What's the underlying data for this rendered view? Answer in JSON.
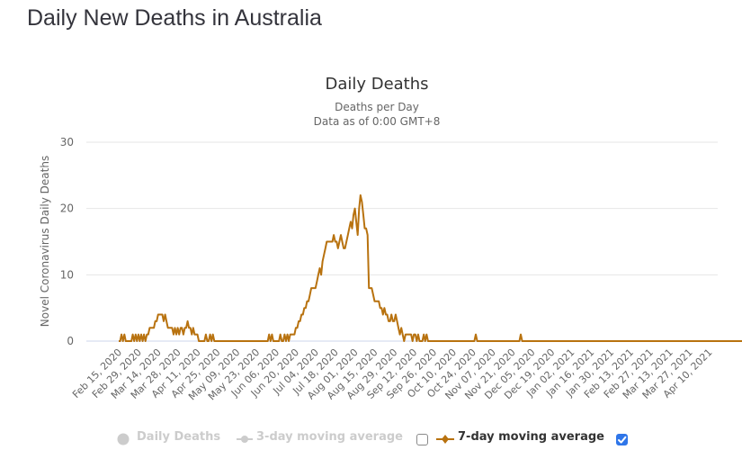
{
  "page": {
    "title": "Daily New Deaths in Australia"
  },
  "colors": {
    "series": "#b8720f",
    "grid": "#e6e6e6",
    "axis": "#ccd6eb",
    "legend_dim": "#cccccc",
    "checkbox": "#2f76e9"
  },
  "legend": {
    "items": [
      {
        "label": "Daily Deaths",
        "visible": false,
        "icon": "circle-marker-icon"
      },
      {
        "label": "3-day moving average",
        "visible": false,
        "icon": "line-dot-marker-icon"
      },
      {
        "label": "7-day moving average",
        "visible": true,
        "icon": "line-diamond-marker-icon"
      }
    ],
    "checkbox_3day": false,
    "checkbox_7day": true
  },
  "chart_data": {
    "type": "line",
    "title": "Daily Deaths",
    "subtitle_line1": "Deaths per Day",
    "subtitle_line2": "Data as of 0:00 GMT+8",
    "ylabel": "Novel Coronavirus Daily Deaths",
    "xlabel": "",
    "ylim": [
      0,
      30
    ],
    "yticks": [
      "0",
      "10",
      "20",
      "30"
    ],
    "grid": true,
    "legend_position": "bottom",
    "x_start": "Feb 15, 2020",
    "x_step_days": 1,
    "xtick_every_days": 14,
    "xticks": [
      "Feb 15, 2020",
      "Feb 29, 2020",
      "Mar 14, 2020",
      "Mar 28, 2020",
      "Apr 11, 2020",
      "Apr 25, 2020",
      "May 09, 2020",
      "May 23, 2020",
      "Jun 06, 2020",
      "Jun 20, 2020",
      "Jul 04, 2020",
      "Jul 18, 2020",
      "Aug 01, 2020",
      "Aug 15, 2020",
      "Aug 29, 2020",
      "Sep 12, 2020",
      "Sep 26, 2020",
      "Oct 10, 2020",
      "Oct 24, 2020",
      "Nov 07, 2020",
      "Nov 21, 2020",
      "Dec 05, 2020",
      "Dec 19, 2020",
      "Jan 02, 2021",
      "Jan 16, 2021",
      "Jan 30, 2021",
      "Feb 13, 2021",
      "Feb 27, 2021",
      "Mar 13, 2021",
      "Mar 27, 2021",
      "Apr 10, 2021"
    ],
    "series": [
      {
        "name": "7-day moving average",
        "values": [
          0,
          0,
          1,
          0,
          1,
          0,
          0,
          0,
          0,
          0,
          1,
          0,
          1,
          0,
          1,
          0,
          1,
          0,
          1,
          0,
          1,
          1,
          2,
          2,
          2,
          2,
          3,
          3,
          4,
          4,
          4,
          4,
          3,
          4,
          3,
          2,
          2,
          2,
          2,
          1,
          2,
          1,
          2,
          1,
          2,
          2,
          1,
          2,
          2,
          3,
          2,
          2,
          1,
          2,
          1,
          1,
          1,
          0,
          0,
          0,
          0,
          0,
          1,
          0,
          0,
          1,
          0,
          1,
          0,
          0,
          0,
          0,
          0,
          0,
          0,
          0,
          0,
          0,
          0,
          0,
          0,
          0,
          0,
          0,
          0,
          0,
          0,
          0,
          0,
          0,
          0,
          0,
          0,
          0,
          0,
          0,
          0,
          0,
          0,
          0,
          0,
          0,
          0,
          0,
          0,
          0,
          0,
          1,
          0,
          1,
          0,
          0,
          0,
          0,
          0,
          1,
          0,
          0,
          1,
          0,
          1,
          0,
          1,
          1,
          1,
          1,
          2,
          2,
          3,
          3,
          4,
          4,
          5,
          5,
          6,
          6,
          7,
          8,
          8,
          8,
          8,
          9,
          10,
          11,
          10,
          12,
          13,
          14,
          15,
          15,
          15,
          15,
          15,
          16,
          15,
          15,
          14,
          15,
          16,
          15,
          14,
          14,
          15,
          16,
          17,
          18,
          17,
          19,
          20,
          18,
          16,
          20,
          22,
          21,
          19,
          17,
          17,
          16,
          8,
          8,
          8,
          7,
          6,
          6,
          6,
          6,
          5,
          5,
          4,
          5,
          4,
          4,
          3,
          3,
          4,
          3,
          3,
          4,
          3,
          2,
          1,
          2,
          1,
          0,
          1,
          1,
          1,
          1,
          1,
          0,
          1,
          1,
          0,
          1,
          0,
          0,
          0,
          1,
          0,
          1,
          0,
          0,
          0,
          0,
          0,
          0,
          0,
          0,
          0,
          0,
          0,
          0,
          0,
          0,
          0,
          0,
          0,
          0,
          0,
          0,
          0,
          0,
          0,
          0,
          0,
          0,
          0,
          0,
          0,
          0,
          0,
          0,
          0,
          0,
          1,
          0,
          0,
          0,
          0,
          0,
          0,
          0,
          0,
          0,
          0,
          0,
          0,
          0,
          0,
          0,
          0,
          0,
          0,
          0,
          0,
          0,
          0,
          0,
          0,
          0,
          0,
          0,
          0,
          0,
          0,
          0,
          1,
          0,
          0,
          0,
          0,
          0,
          0,
          0,
          0,
          0,
          0,
          0,
          0,
          0,
          0,
          0,
          0,
          0,
          0,
          0,
          0,
          0,
          0,
          0,
          0,
          0,
          0,
          0,
          0,
          0,
          0,
          0,
          0,
          0,
          0,
          0,
          0,
          0,
          0,
          0,
          0,
          0,
          0,
          0,
          0,
          0,
          0,
          0,
          0,
          0,
          0,
          0,
          0,
          0,
          0,
          0,
          0,
          0,
          0,
          0,
          0,
          0,
          0,
          0,
          0,
          0,
          0,
          0,
          0,
          0,
          0,
          0,
          0,
          0,
          0,
          0,
          0,
          0,
          0,
          0,
          0,
          0,
          0,
          0,
          0,
          0,
          0,
          0,
          0,
          0,
          0,
          0,
          0,
          0,
          0,
          0,
          0,
          0,
          0,
          0,
          0,
          0,
          0,
          0,
          0,
          0,
          0,
          0,
          0,
          0,
          0,
          0,
          0,
          0,
          0,
          0,
          0,
          0,
          0,
          0,
          0,
          0,
          0,
          0,
          0,
          0,
          0,
          0,
          0,
          0,
          0,
          0,
          0,
          0,
          0,
          0,
          0,
          0,
          0,
          0,
          0,
          0,
          0,
          0,
          0,
          0,
          0,
          0,
          0,
          0,
          0,
          0,
          0,
          0,
          0,
          0,
          0,
          0,
          0,
          0,
          0,
          0,
          0,
          0,
          0,
          0,
          0,
          1,
          0
        ]
      }
    ]
  }
}
